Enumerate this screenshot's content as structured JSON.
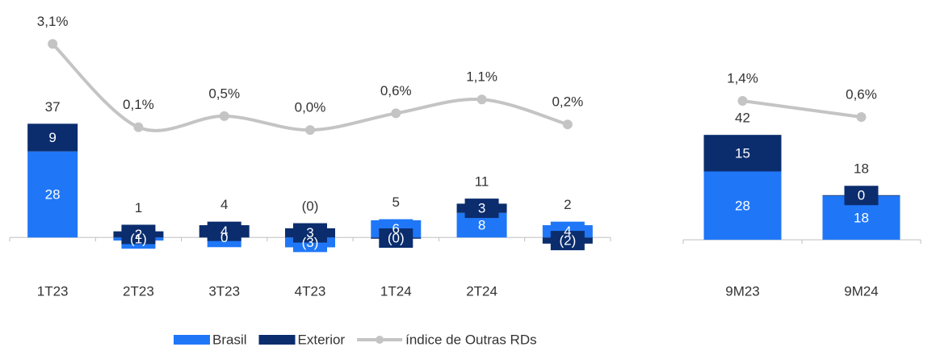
{
  "chart_data": [
    {
      "type": "bar",
      "stacked": true,
      "smooth": true,
      "categories": [
        "1T23",
        "2T23",
        "3T23",
        "4T23",
        "1T24",
        "2T24",
        null
      ],
      "series": [
        {
          "name": "Brasil",
          "color": "#1f77f7",
          "values": [
            28,
            -1,
            0,
            -3.2,
            5.6,
            8,
            4
          ],
          "value_labels": [
            "28",
            "(1)",
            "0",
            "(3)",
            "6",
            "8",
            "4"
          ]
        },
        {
          "name": "Exterior",
          "color": "#0b2d6e",
          "values": [
            9,
            2,
            4,
            3,
            -0.4,
            3,
            -2
          ],
          "value_labels": [
            "9",
            "2",
            "4",
            "3",
            "(0)",
            "3",
            "(2)"
          ]
        },
        {
          "name": "índice de Outras RDs",
          "type": "line",
          "axis": "y2",
          "color": "#c4c4c4",
          "values": [
            3.1,
            0.1,
            0.5,
            0.0,
            0.6,
            1.1,
            0.2
          ],
          "value_labels": [
            "3,1%",
            "0,1%",
            "0,5%",
            "0,0%",
            "0,6%",
            "1,1%",
            "0,2%"
          ]
        }
      ],
      "totals": [
        37,
        1,
        4,
        -0.2,
        5.2,
        11,
        2
      ],
      "total_labels": [
        "37",
        "1",
        "4",
        "(0)",
        "5",
        "11",
        "2"
      ],
      "ylim": [
        -12,
        72
      ],
      "y2lim": [
        -5.2,
        4.1
      ]
    },
    {
      "type": "bar",
      "stacked": true,
      "smooth": false,
      "categories": [
        "9M23",
        "9M24"
      ],
      "series": [
        {
          "color": "#1f77f7",
          "values": [
            28,
            18
          ],
          "value_labels": [
            "28",
            "18"
          ]
        },
        {
          "color": "#0b2d6e",
          "values": [
            15,
            0.3
          ],
          "value_labels": [
            "15",
            "0"
          ]
        },
        {
          "type": "line",
          "axis": "y2",
          "color": "#c4c4c4",
          "values": [
            1.4,
            0.6
          ],
          "value_labels": [
            "1,4%",
            "0,6%"
          ]
        }
      ],
      "totals": [
        42,
        18
      ],
      "total_labels": [
        "42",
        "18"
      ],
      "ylim": [
        -14.2,
        91.7
      ],
      "y2lim": [
        -7.2,
        5.6
      ]
    }
  ]
}
